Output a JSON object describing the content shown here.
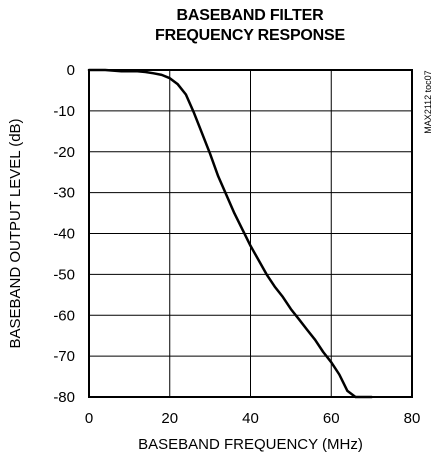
{
  "chart_data": {
    "type": "line",
    "title_lines": [
      "BASEBAND FILTER",
      "FREQUENCY RESPONSE"
    ],
    "xlabel": "BASEBAND FREQUENCY (MHz)",
    "ylabel": "BASEBAND OUTPUT LEVEL (dB)",
    "xlim": [
      0,
      80
    ],
    "ylim": [
      -80,
      0
    ],
    "xticks": [
      0,
      20,
      40,
      60,
      80
    ],
    "yticks": [
      0,
      -10,
      -20,
      -30,
      -40,
      -50,
      -60,
      -70,
      -80
    ],
    "grid": true,
    "figure_code": "MAX2112 toc07",
    "series": [
      {
        "x": [
          0,
          4,
          8,
          10,
          12,
          14,
          16,
          18,
          20,
          22,
          24,
          26,
          28,
          30,
          32,
          34,
          36,
          38,
          40,
          42,
          44,
          46,
          48,
          50,
          52,
          54,
          56,
          58,
          60,
          62,
          64,
          66,
          68,
          70
        ],
        "y": [
          0,
          0,
          -0.3,
          -0.3,
          -0.3,
          -0.5,
          -0.8,
          -1.2,
          -2,
          -3.5,
          -6,
          -10.5,
          -15.5,
          -20.5,
          -26,
          -30.5,
          -35,
          -39,
          -43,
          -46.5,
          -50,
          -53,
          -55.5,
          -58.5,
          -61,
          -63.5,
          -66,
          -69,
          -71.5,
          -74.5,
          -78.5,
          -80.5,
          -80.7,
          -81
        ]
      }
    ]
  }
}
